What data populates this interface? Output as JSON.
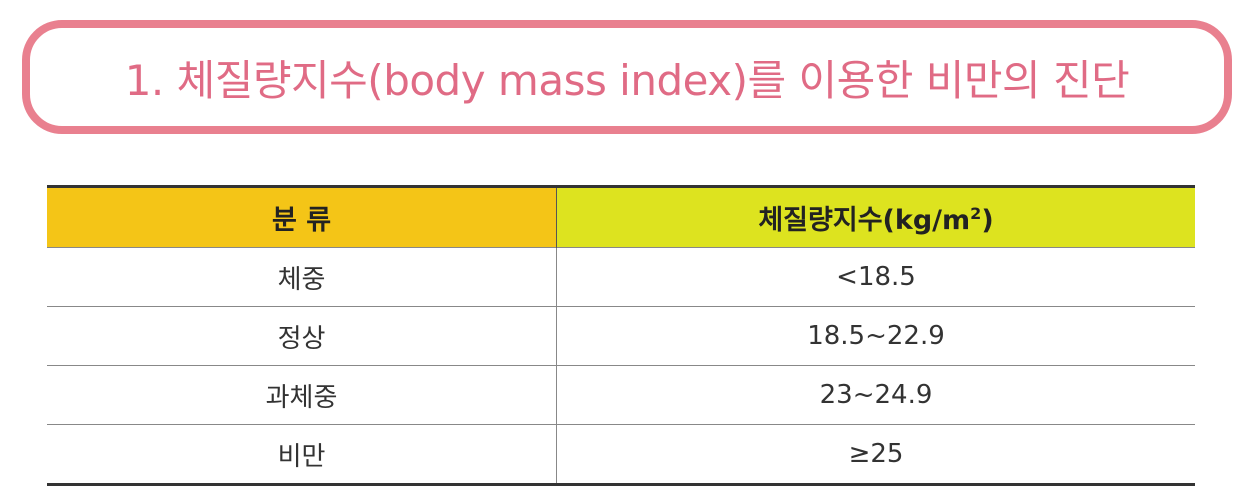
{
  "header": {
    "title": "1. 체질량지수(body mass index)를 이용한 비만의 진단"
  },
  "table": {
    "columns": [
      {
        "text": "분 류"
      },
      {
        "text": "체질량지수(kg/m",
        "sup": "2",
        "tail": ")"
      }
    ],
    "rows": [
      [
        "체중",
        "<18.5"
      ],
      [
        "정상",
        "18.5~22.9"
      ],
      [
        "과체중",
        "23~24.9"
      ],
      [
        "비만",
        "≥25"
      ]
    ]
  }
}
